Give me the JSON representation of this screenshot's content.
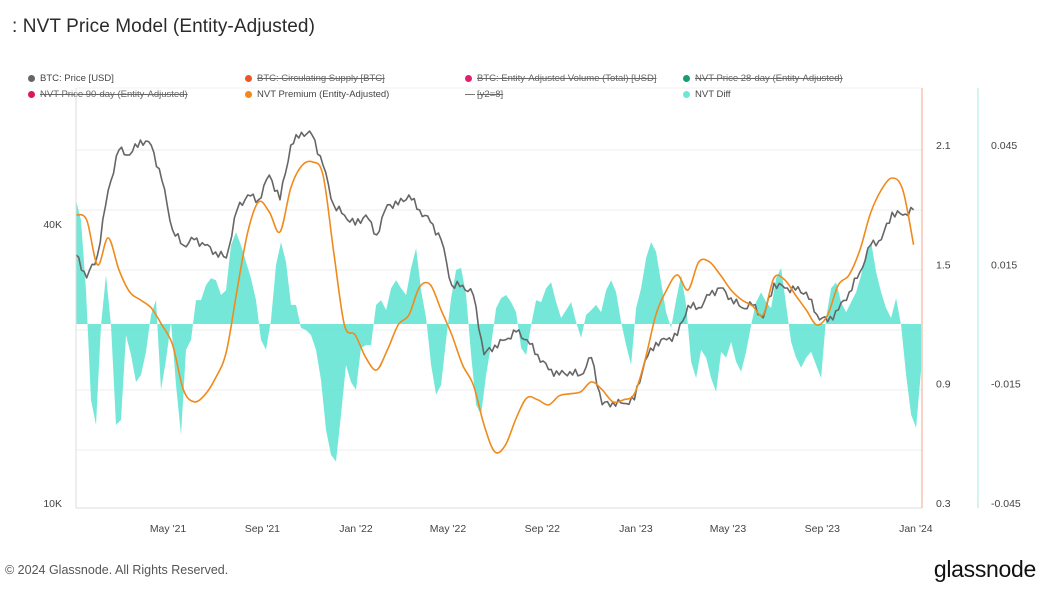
{
  "title": ": NVT Price Model (Entity-Adjusted)",
  "legend": [
    {
      "label": "BTC: Price [USD]",
      "color": "#666666",
      "marker": "dot",
      "enabled": true
    },
    {
      "label": "BTC: Circulating Supply [BTC]",
      "color": "#e8572a",
      "marker": "dot",
      "enabled": false
    },
    {
      "label": "BTC: Entity-Adjusted Volume (Total) [USD]",
      "color": "#e0206e",
      "marker": "dot",
      "enabled": false
    },
    {
      "label": "NVT Price 28-day (Entity-Adjusted)",
      "color": "#1a9b72",
      "marker": "dot",
      "enabled": false
    },
    {
      "label": "NVT Price 90-day (Entity-Adjusted)",
      "color": "#e0165a",
      "marker": "dot",
      "enabled": false
    },
    {
      "label": "NVT Premium (Entity-Adjusted)",
      "color": "#f08a1c",
      "marker": "dot",
      "enabled": true
    },
    {
      "label": "[y2=8]",
      "color": "#888888",
      "marker": "dash",
      "enabled": false
    },
    {
      "label": "NVT Diff",
      "color": "#6ee6d6",
      "marker": "dot",
      "enabled": true
    }
  ],
  "footer": {
    "copyright": "© 2024 Glassnode. All Rights Reserved.",
    "brand": "glassnode"
  },
  "chart_data": {
    "type": "line",
    "title": ": NVT Price Model (Entity-Adjusted)",
    "x_range": [
      "2021-01-01",
      "2024-01-09"
    ],
    "x_ticks": [
      {
        "date": "2021-05-01",
        "label": "May '21"
      },
      {
        "date": "2021-09-01",
        "label": "Sep '21"
      },
      {
        "date": "2022-01-01",
        "label": "Jan '22"
      },
      {
        "date": "2022-05-01",
        "label": "May '22"
      },
      {
        "date": "2022-09-01",
        "label": "Sep '22"
      },
      {
        "date": "2023-01-01",
        "label": "Jan '23"
      },
      {
        "date": "2023-05-01",
        "label": "May '23"
      },
      {
        "date": "2023-09-01",
        "label": "Sep '23"
      },
      {
        "date": "2024-01-01",
        "label": "Jan '24"
      }
    ],
    "axes": {
      "left": {
        "scale": "log",
        "range": [
          10000,
          75000
        ],
        "ticks": [
          {
            "value": 40000,
            "label": "40K"
          },
          {
            "value": 10000,
            "label": "10K"
          }
        ]
      },
      "right1": {
        "scale": "linear",
        "range": [
          0.3,
          2.4
        ],
        "color": "#f4b8a0",
        "ticks": [
          {
            "value": 2.1,
            "label": "2.1"
          },
          {
            "value": 1.5,
            "label": "1.5"
          },
          {
            "value": 0.9,
            "label": "0.9"
          },
          {
            "value": 0.3,
            "label": "0.3"
          }
        ]
      },
      "right2": {
        "scale": "linear",
        "range": [
          -0.045,
          0.0555
        ],
        "color": "#b8ece4",
        "ticks": [
          {
            "value": 0.045,
            "label": "0.045"
          },
          {
            "value": 0.015,
            "label": "0.015"
          },
          {
            "value": -0.015,
            "label": "-0.015"
          },
          {
            "value": -0.045,
            "label": "-0.045"
          }
        ]
      }
    },
    "grid": true,
    "series": [
      {
        "name": "BTC: Price [USD]",
        "type": "line",
        "axis": "left",
        "color": "#666666",
        "start": "2021-01-01",
        "step_days": 14,
        "values": [
          34300,
          30600,
          34300,
          47300,
          57800,
          56400,
          60700,
          59200,
          49700,
          38800,
          36000,
          37000,
          36000,
          34800,
          33800,
          42900,
          46200,
          45100,
          51000,
          45100,
          59200,
          63100,
          62200,
          53600,
          44000,
          41800,
          39800,
          41800,
          37900,
          44000,
          44000,
          46200,
          42900,
          40400,
          37000,
          29500,
          29500,
          28100,
          20900,
          21900,
          22500,
          23400,
          22500,
          20900,
          19400,
          18900,
          19200,
          18900,
          20600,
          16300,
          16500,
          16400,
          16700,
          20300,
          22200,
          22500,
          23000,
          26700,
          26400,
          28100,
          29100,
          27700,
          26400,
          26700,
          25100,
          29800,
          29100,
          28800,
          28500,
          25500,
          24600,
          26100,
          28500,
          31500,
          36000,
          37000,
          42400,
          41800,
          42900
        ]
      },
      {
        "name": "NVT Premium (Entity-Adjusted)",
        "type": "line",
        "axis": "right1",
        "color": "#f08a1c",
        "start": "2021-01-01",
        "step_days": 14,
        "values": [
          1.748,
          1.723,
          1.497,
          1.633,
          1.472,
          1.361,
          1.321,
          1.281,
          1.195,
          1.095,
          0.869,
          0.809,
          0.844,
          0.929,
          1.06,
          1.371,
          1.663,
          1.814,
          1.763,
          1.663,
          1.884,
          1.994,
          2.015,
          1.949,
          1.562,
          1.195,
          1.145,
          1.03,
          0.969,
          1.07,
          1.195,
          1.246,
          1.386,
          1.397,
          1.271,
          1.145,
          0.994,
          0.894,
          0.693,
          0.557,
          0.592,
          0.728,
          0.829,
          0.819,
          0.793,
          0.839,
          0.849,
          0.859,
          0.909,
          0.869,
          0.809,
          0.819,
          0.849,
          1.02,
          1.246,
          1.371,
          1.447,
          1.371,
          1.512,
          1.512,
          1.447,
          1.371,
          1.321,
          1.291,
          1.246,
          1.432,
          1.422,
          1.346,
          1.271,
          1.195,
          1.246,
          1.397,
          1.447,
          1.572,
          1.758,
          1.874,
          1.934,
          1.874,
          1.598
        ]
      },
      {
        "name": "NVT Diff",
        "type": "area",
        "axis": "right2",
        "color": "#6ee6d6",
        "start": "2021-01-01",
        "step_days": 6.52,
        "values": [
          0.0311,
          0.0261,
          0.0085,
          -0.0191,
          -0.0254,
          -0.0003,
          0.0123,
          -0.0003,
          -0.0254,
          -0.0241,
          -0.0028,
          -0.0078,
          -0.0146,
          -0.0128,
          -0.007,
          0.0023,
          0.006,
          -0.0166,
          -0.009,
          0.0005,
          -0.0153,
          -0.0279,
          -0.0065,
          -0.004,
          0.006,
          0.006,
          0.0098,
          0.0115,
          0.011,
          0.0073,
          0.0085,
          0.0198,
          0.0231,
          0.0198,
          0.0156,
          0.0115,
          0.006,
          -0.004,
          -0.0065,
          0.001,
          0.0148,
          0.0206,
          0.0156,
          0.0048,
          0.0048,
          -0.001,
          -0.0015,
          -0.0028,
          -0.0065,
          -0.0141,
          -0.0266,
          -0.0329,
          -0.0346,
          -0.0228,
          -0.0103,
          -0.0146,
          -0.0166,
          -0.006,
          -0.0053,
          -0.0053,
          0.0048,
          0.006,
          0.0035,
          0.009,
          0.011,
          0.009,
          0.0073,
          0.0141,
          0.0191,
          0.0085,
          0.0015,
          -0.0103,
          -0.0178,
          -0.0153,
          -0.004,
          0.0065,
          0.0136,
          0.0141,
          0.0073,
          -0.0078,
          -0.0203,
          -0.0228,
          -0.0128,
          -0.0053,
          0.004,
          0.0065,
          0.0073,
          0.0055,
          0.003,
          -0.006,
          -0.0078,
          -0.0003,
          0.006,
          0.0055,
          0.009,
          0.0105,
          0.0055,
          0.0015,
          0.0035,
          0.0055,
          0.0005,
          -0.0035,
          0.0023,
          0.0035,
          0.0048,
          0.003,
          0.0085,
          0.011,
          0.008,
          0.0005,
          -0.0053,
          -0.0103,
          0.004,
          0.009,
          0.0166,
          0.0206,
          0.0181,
          0.0105,
          0.003,
          -0.001,
          0.006,
          0.0123,
          0.0048,
          -0.0095,
          -0.0136,
          -0.0065,
          -0.0085,
          -0.0136,
          -0.0171,
          -0.007,
          -0.0085,
          -0.0045,
          -0.0095,
          -0.012,
          -0.007,
          -0.0003,
          0.0055,
          0.008,
          0.0055,
          0.004,
          0.0115,
          0.0141,
          0.0048,
          -0.0045,
          -0.0085,
          -0.011,
          -0.0085,
          -0.007,
          -0.0103,
          -0.0136,
          0.0015,
          0.009,
          0.0105,
          0.0055,
          0.003,
          0.0055,
          0.008,
          0.0123,
          0.0181,
          0.0206,
          0.0131,
          0.008,
          0.004,
          0.0015,
          0.0065,
          -0.0003,
          -0.0128,
          -0.0228,
          -0.0261,
          -0.0115
        ]
      }
    ],
    "legend_position": "top"
  }
}
